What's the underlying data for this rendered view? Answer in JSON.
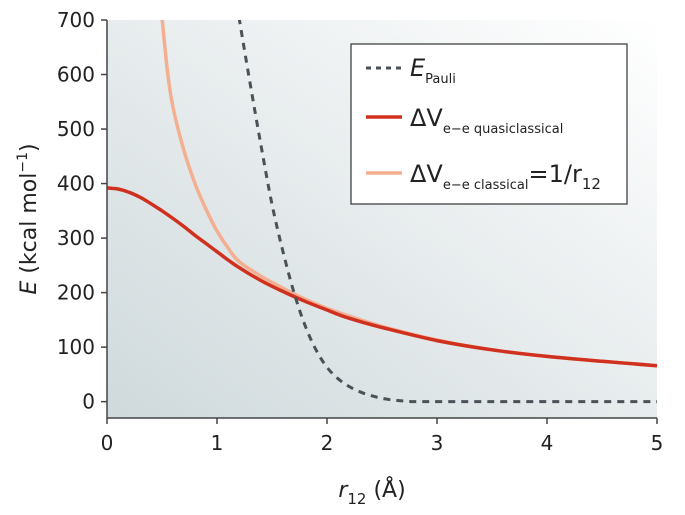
{
  "chart_data": {
    "type": "line",
    "xlabel": {
      "symbol": "r",
      "subscript": "12",
      "unit": " (Å)"
    },
    "ylabel": {
      "symbol": "E",
      "unit": " (kcal mol",
      "exponent": "−1",
      "close": ")"
    },
    "xlim": [
      0,
      5
    ],
    "ylim": [
      -30,
      700
    ],
    "xticks": [
      "0",
      "1",
      "2",
      "3",
      "4",
      "5"
    ],
    "yticks": [
      "0",
      "100",
      "200",
      "300",
      "400",
      "500",
      "600",
      "700"
    ],
    "xtick_values": [
      0,
      1,
      2,
      3,
      4,
      5
    ],
    "ytick_values": [
      0,
      100,
      200,
      300,
      400,
      500,
      600,
      700
    ],
    "grid": false,
    "legend_position": "top-right",
    "background": {
      "from": "#cfd9dc",
      "to": "#ffffff"
    },
    "series": [
      {
        "key": "pauli",
        "name": {
          "main": "E",
          "sub": "Pauli"
        },
        "color": "#4a5257",
        "dash": true,
        "x": [
          1.2,
          1.3,
          1.4,
          1.5,
          1.6,
          1.7,
          1.8,
          1.9,
          2.0,
          2.1,
          2.2,
          2.3,
          2.4,
          2.5,
          2.6,
          2.7,
          2.8,
          2.9,
          3.0,
          3.5,
          4.0,
          4.5,
          5.0
        ],
        "y": [
          705,
          585,
          470,
          362,
          275,
          200,
          140,
          95,
          63,
          42,
          28,
          18,
          11,
          6,
          3,
          1,
          0,
          0,
          0,
          0,
          0,
          0,
          0
        ]
      },
      {
        "key": "quasi",
        "name": {
          "main": "ΔV",
          "sub": "e−e quasiclassical"
        },
        "color": "#d0311f",
        "dash": false,
        "x": [
          0,
          0.1,
          0.2,
          0.3,
          0.4,
          0.5,
          0.6,
          0.7,
          0.8,
          0.9,
          1.0,
          1.1,
          1.2,
          1.4,
          1.6,
          1.8,
          2.0,
          2.2,
          2.5,
          3.0,
          3.5,
          4.0,
          4.5,
          5.0
        ],
        "y": [
          392,
          390,
          384,
          375,
          363,
          350,
          336,
          321,
          305,
          290,
          275,
          260,
          246,
          222,
          202,
          184,
          168,
          153,
          136,
          112,
          95,
          83,
          74,
          66
        ]
      },
      {
        "key": "classical",
        "name": {
          "main": "ΔV",
          "sub": "e−e classical",
          "eq": "=1/r",
          "eqsub": "12"
        },
        "color": "#f4ae90",
        "dash": false,
        "x": [
          0.5,
          0.55,
          0.6,
          0.7,
          0.8,
          0.9,
          1.0,
          1.1,
          1.2,
          1.4,
          1.6,
          1.8,
          2.0,
          2.2,
          2.5,
          3.0,
          3.5,
          4.0,
          4.5,
          5.0
        ],
        "y": [
          705,
          605,
          540,
          460,
          400,
          353,
          313,
          282,
          257,
          230,
          208,
          188,
          171,
          157,
          138,
          113,
          95,
          83,
          74,
          66
        ]
      }
    ]
  }
}
